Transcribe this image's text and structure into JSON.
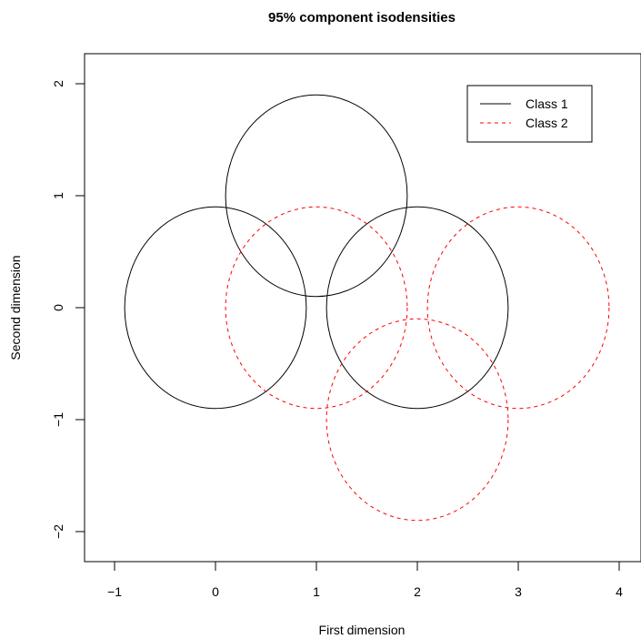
{
  "chart_data": {
    "type": "scatter",
    "title": "95% component isodensities",
    "xlabel": "First dimension",
    "ylabel": "Second dimension",
    "xlim": [
      -1.3,
      4.2
    ],
    "ylim": [
      -2.25,
      2.25
    ],
    "x_ticks": [
      -1,
      0,
      1,
      2,
      3,
      4
    ],
    "y_ticks": [
      -2,
      -1,
      0,
      1,
      2
    ],
    "x_tick_labels": [
      "−1",
      "0",
      "1",
      "2",
      "3",
      "4"
    ],
    "y_tick_labels": [
      "−2",
      "−1",
      "0",
      "1",
      "2"
    ],
    "grid": false,
    "legend_position": "top-right",
    "series": [
      {
        "name": "Class 1",
        "color": "#000000",
        "line_style": "solid",
        "ellipses": [
          {
            "cx": 0,
            "cy": 0,
            "rx": 0.9,
            "ry": 0.9
          },
          {
            "cx": 1,
            "cy": 1,
            "rx": 0.9,
            "ry": 0.9
          },
          {
            "cx": 2,
            "cy": 0,
            "rx": 0.9,
            "ry": 0.9
          }
        ]
      },
      {
        "name": "Class 2",
        "color": "#ff0000",
        "line_style": "dashed",
        "ellipses": [
          {
            "cx": 1,
            "cy": 0,
            "rx": 0.9,
            "ry": 0.9
          },
          {
            "cx": 3,
            "cy": 0,
            "rx": 0.9,
            "ry": 0.9
          },
          {
            "cx": 2,
            "cy": -1,
            "rx": 0.9,
            "ry": 0.9
          }
        ]
      }
    ]
  }
}
